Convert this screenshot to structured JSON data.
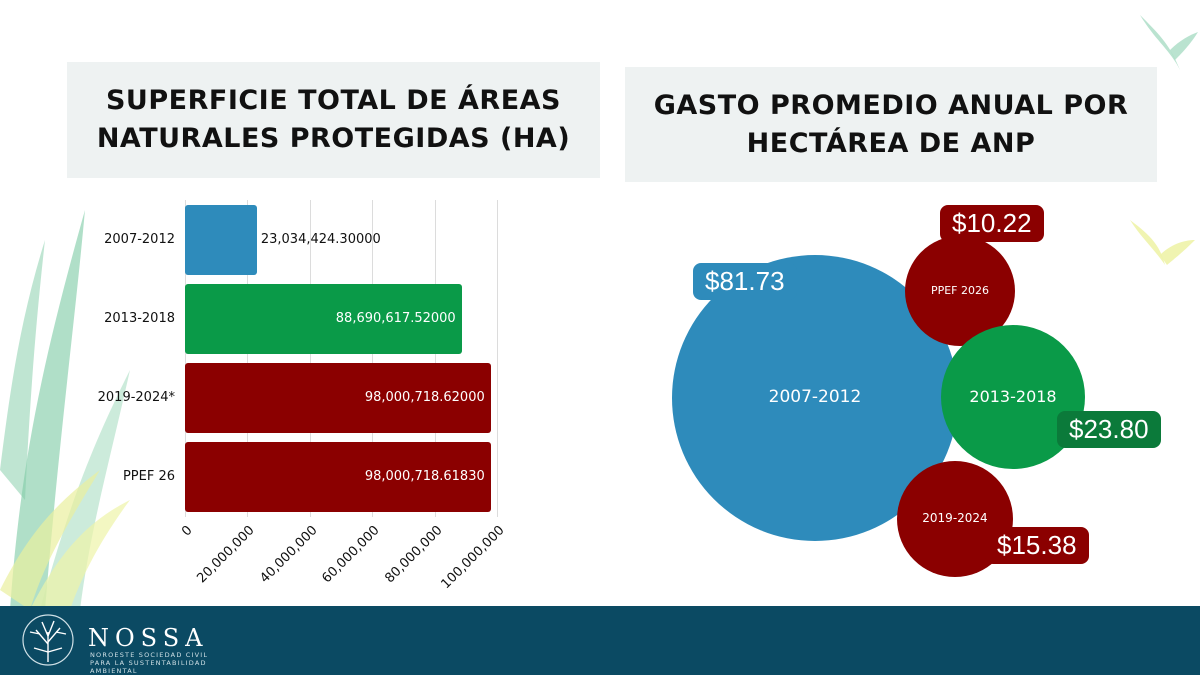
{
  "colors": {
    "blue": "#2e8bbb",
    "green": "#0a9a48",
    "darkred": "#8b0000",
    "darkgreen": "#0b7a3a",
    "footer": "#0b4a63",
    "title_bg": "#eef2f2"
  },
  "chart_data": [
    {
      "type": "bar",
      "orientation": "horizontal",
      "title": "SUPERFICIE TOTAL DE ÁREAS NATURALES PROTEGIDAS (HA)",
      "title_lines": [
        "SUPERFICIE TOTAL DE ÁREAS",
        "NATURALES PROTEGIDAS (HA)"
      ],
      "categories": [
        "2007-2012",
        "2013-2018",
        "2019-2024*",
        "PPEF 26"
      ],
      "values": [
        23034424.3,
        88690617.52,
        98000718.62,
        98000718.6183
      ],
      "value_labels": [
        "23,034,424.30000",
        "88,690,617.52000",
        "98,000,718.62000",
        "98,000,718.61830"
      ],
      "bar_colors": [
        "#2e8bbb",
        "#0a9a48",
        "#8b0000",
        "#8b0000"
      ],
      "xlim": [
        0,
        100000000
      ],
      "ticks": [
        "0",
        "20,000,000",
        "40,000,000",
        "60,000,000",
        "80,000,000",
        "100,000,000"
      ],
      "grid": true
    },
    {
      "type": "bubble",
      "title": "GASTO PROMEDIO ANUAL POR HECTÁREA DE ANP",
      "title_lines": [
        "GASTO PROMEDIO ANUAL POR",
        "HECTÁREA DE ANP"
      ],
      "categories": [
        "2007-2012",
        "PPEF 2026",
        "2013-2018",
        "2019-2024"
      ],
      "values": [
        81.73,
        10.22,
        23.8,
        15.38
      ],
      "value_labels": [
        "$81.73",
        "$10.22",
        "$23.80",
        "$15.38"
      ],
      "bubble_colors": [
        "#2e8bbb",
        "#8b0000",
        "#0a9a48",
        "#8b0000"
      ],
      "label_colors": [
        "#2e8bbb",
        "#8b0000",
        "#0b7a3a",
        "#8b0000"
      ]
    }
  ],
  "footer": {
    "brand": "NOSSA",
    "subtitle": "NOROESTE SOCIEDAD CIVIL PARA LA SUSTENTABILIDAD AMBIENTAL"
  }
}
